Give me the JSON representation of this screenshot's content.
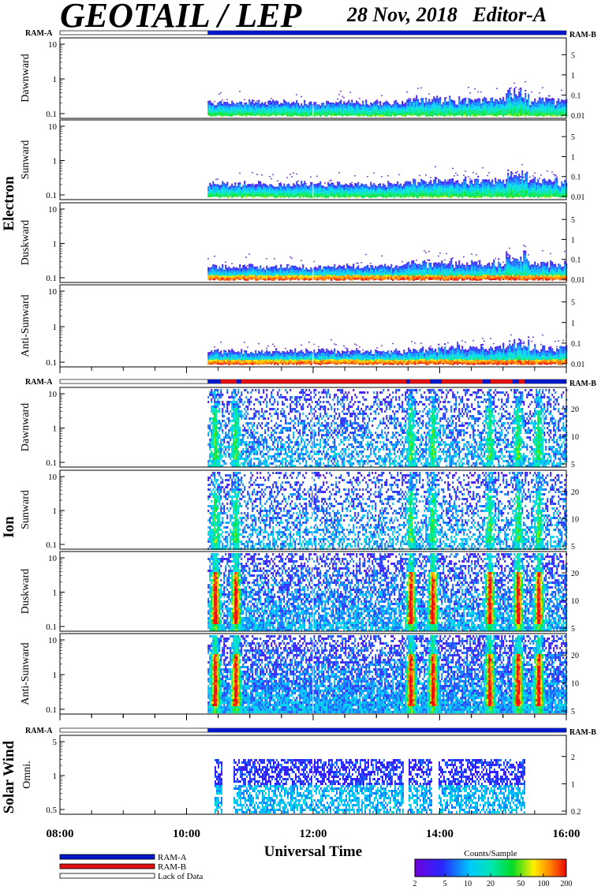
{
  "header": {
    "title": "GEOTAIL / LEP",
    "date": "28 Nov, 2018",
    "editor": "Editor-A"
  },
  "chart_data": {
    "type": "heatmap",
    "title": "GEOTAIL / LEP",
    "xlabel": "Universal Time",
    "x_ticks": [
      "08:00",
      "10:00",
      "12:00",
      "14:00",
      "16:00"
    ],
    "xlim": [
      "08:00",
      "16:00"
    ],
    "data_start": "10:20",
    "colorbar": {
      "label": "Counts/Sample",
      "ticks": [
        "2",
        "5",
        "10",
        "20",
        "50",
        "100",
        "200"
      ],
      "range": [
        2,
        200
      ],
      "scale": "log"
    },
    "legend": [
      {
        "label": "RAM-A",
        "color": "#0018c8"
      },
      {
        "label": "RAM-B",
        "color": "#e01010"
      },
      {
        "label": "Lack of Data",
        "color": "#ffffff"
      }
    ],
    "groups": [
      {
        "name": "Electron",
        "ram_left": "RAM-A",
        "ram_right": "RAM-B",
        "panels": [
          {
            "label": "Dawnward",
            "left_ticks": [
              "0.1",
              "1",
              "10"
            ],
            "right_ticks": [
              "0.01",
              "0.1",
              "1",
              "5"
            ],
            "left_scale": "log",
            "right_scale": "log"
          },
          {
            "label": "Sunward",
            "left_ticks": [
              "0.1",
              "1",
              "10"
            ],
            "right_ticks": [
              "0.01",
              "0.1",
              "1",
              "5"
            ],
            "left_scale": "log",
            "right_scale": "log"
          },
          {
            "label": "Duskward",
            "left_ticks": [
              "0.1",
              "1",
              "10"
            ],
            "right_ticks": [
              "0.01",
              "0.1",
              "1",
              "5"
            ],
            "left_scale": "log",
            "right_scale": "log"
          },
          {
            "label": "Anti-Sunward",
            "left_ticks": [
              "0.1",
              "1",
              "10"
            ],
            "right_ticks": [
              "0.01",
              "0.1",
              "1",
              "5"
            ],
            "left_scale": "log",
            "right_scale": "log"
          }
        ]
      },
      {
        "name": "Ion",
        "ram_left": "RAM-A",
        "ram_right": "RAM-B",
        "panels": [
          {
            "label": "Dawnward",
            "left_ticks": [
              "0.1",
              "1",
              "10"
            ],
            "right_ticks": [
              "5",
              "10",
              "20"
            ],
            "left_scale": "log",
            "right_scale": "log"
          },
          {
            "label": "Sunward",
            "left_ticks": [
              "0.1",
              "1",
              "10"
            ],
            "right_ticks": [
              "5",
              "10",
              "20"
            ],
            "left_scale": "log",
            "right_scale": "log"
          },
          {
            "label": "Duskward",
            "left_ticks": [
              "0.1",
              "1",
              "10"
            ],
            "right_ticks": [
              "5",
              "10",
              "20"
            ],
            "left_scale": "log",
            "right_scale": "log"
          },
          {
            "label": "Anti-Sunward",
            "left_ticks": [
              "0.1",
              "1",
              "10"
            ],
            "right_ticks": [
              "5",
              "10",
              "20"
            ],
            "left_scale": "log",
            "right_scale": "log"
          }
        ]
      },
      {
        "name": "Solar Wind",
        "ram_left": "RAM-A",
        "ram_right": "RAM-B",
        "panels": [
          {
            "label": "Omni.",
            "left_ticks": [
              "0.5",
              "1",
              "5"
            ],
            "right_ticks": [
              "0.2",
              "1",
              "2"
            ],
            "left_scale": "log",
            "right_scale": "log"
          }
        ]
      }
    ]
  }
}
